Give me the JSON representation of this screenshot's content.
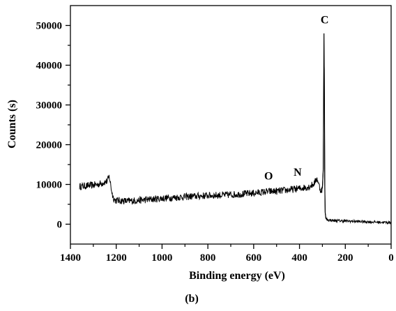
{
  "panel_label": "(b)",
  "chart_data": {
    "type": "line",
    "title": "",
    "xlabel": "Binding energy (eV)",
    "ylabel": "Counts (s)",
    "xlim": [
      1400,
      0
    ],
    "ylim": [
      -5000,
      55000
    ],
    "x_reversed": true,
    "grid": false,
    "x_ticks": [
      1400,
      1200,
      1000,
      800,
      600,
      400,
      200,
      0
    ],
    "y_ticks": [
      0,
      10000,
      20000,
      30000,
      40000,
      50000
    ],
    "x_minor_ticks": [
      1300,
      1100,
      900,
      700,
      500,
      300,
      100
    ],
    "y_minor_ticks": [
      5000,
      15000,
      25000,
      35000,
      45000
    ],
    "series": [
      {
        "values_note": "",
        "x": [
          1360,
          1320,
          1280,
          1240,
          1230,
          1222,
          1215,
          1205,
          1150,
          1100,
          1000,
          900,
          800,
          700,
          600,
          540,
          500,
          450,
          400,
          360,
          340,
          330,
          325,
          320,
          315,
          310,
          305,
          300,
          296,
          293,
          291,
          290,
          288,
          285,
          280,
          270,
          260,
          250,
          240,
          200,
          150,
          100,
          50,
          0
        ],
        "y": [
          9500,
          9700,
          10000,
          10800,
          12000,
          9000,
          7000,
          6000,
          5800,
          6000,
          6500,
          6900,
          7200,
          7400,
          7800,
          8200,
          8300,
          8600,
          9000,
          9400,
          10000,
          10800,
          11500,
          11000,
          9800,
          8800,
          8500,
          9000,
          14000,
          48000,
          30000,
          12000,
          3000,
          1500,
          1200,
          1000,
          1000,
          900,
          900,
          800,
          700,
          600,
          500,
          400
        ]
      }
    ],
    "annotations": [
      {
        "text": "C",
        "x": 290,
        "y": 50500
      },
      {
        "text": "O",
        "x": 535,
        "y": 11200
      },
      {
        "text": "N",
        "x": 408,
        "y": 12200
      }
    ]
  }
}
